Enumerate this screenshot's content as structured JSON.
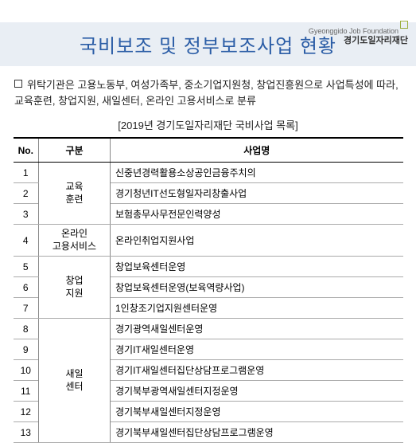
{
  "logo": {
    "line1": "Gyeonggido Job Foundation",
    "line2": "경기도일자리재단"
  },
  "title": "국비보조 및 정부보조사업 현황",
  "description": "위탁기관은 고용노동부, 여성가족부, 중소기업지원청, 창업진흥원으로 사업특성에 따라, 교육훈련, 창업지원, 새일센터, 온라인 고용서비스로 분류",
  "subtitle": "[2019년 경기도일자리재단 국비사업 목록]",
  "table": {
    "headers": {
      "no": "No.",
      "category": "구분",
      "name": "사업명"
    },
    "groups": [
      {
        "category": "교육\n훈련",
        "rows": [
          {
            "no": 1,
            "name": "신중년경력활용소상공인금융주치의"
          },
          {
            "no": 2,
            "name": "경기청년IT선도형일자리창출사업"
          },
          {
            "no": 3,
            "name": "보험총무사무전문인력양성"
          }
        ]
      },
      {
        "category": "온라인\n고용서비스",
        "rows": [
          {
            "no": 4,
            "name": "온라인취업지원사업"
          }
        ]
      },
      {
        "category": "창업\n지원",
        "rows": [
          {
            "no": 5,
            "name": "창업보육센터운영"
          },
          {
            "no": 6,
            "name": "창업보육센터운영(보육역량사업)"
          },
          {
            "no": 7,
            "name": "1인창조기업지원센터운영"
          }
        ]
      },
      {
        "category": "새일\n센터",
        "rows": [
          {
            "no": 8,
            "name": "경기광역새일센터운영"
          },
          {
            "no": 9,
            "name": "경기IT새일센터운영"
          },
          {
            "no": 10,
            "name": "경기IT새일센터집단상담프로그램운영"
          },
          {
            "no": 11,
            "name": "경기북부광역새일센터지정운영"
          },
          {
            "no": 12,
            "name": "경기북부새일센터지정운영"
          },
          {
            "no": 13,
            "name": "경기북부새일센터집단상담프로그램운영"
          }
        ]
      }
    ]
  }
}
